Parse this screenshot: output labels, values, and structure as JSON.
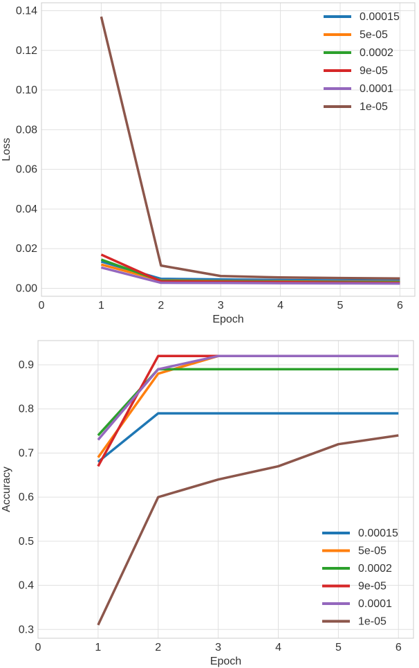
{
  "chart_data": [
    {
      "type": "line",
      "title": "",
      "xlabel": "Epoch",
      "ylabel": "Loss",
      "xlim": [
        0,
        6.25
      ],
      "ylim": [
        -0.004,
        0.144
      ],
      "xticks": [
        0,
        1,
        2,
        3,
        4,
        5,
        6
      ],
      "yticks": [
        0.0,
        0.02,
        0.04,
        0.06,
        0.08,
        0.1,
        0.12,
        0.14
      ],
      "ytick_format": 2,
      "grid": true,
      "legend_position": "top-right",
      "x": [
        1,
        2,
        3,
        4,
        5,
        6
      ],
      "series": [
        {
          "name": "0.00015",
          "color": "#1f77b4",
          "values": [
            0.0135,
            0.0048,
            0.0045,
            0.0042,
            0.004,
            0.0038
          ]
        },
        {
          "name": "5e-05",
          "color": "#ff7f0e",
          "values": [
            0.012,
            0.004,
            0.0037,
            0.0035,
            0.0033,
            0.0032
          ]
        },
        {
          "name": "0.0002",
          "color": "#2ca02c",
          "values": [
            0.0145,
            0.0038,
            0.0035,
            0.0033,
            0.0031,
            0.003
          ]
        },
        {
          "name": "9e-05",
          "color": "#d62728",
          "values": [
            0.017,
            0.0035,
            0.0033,
            0.0031,
            0.0029,
            0.0027
          ]
        },
        {
          "name": "0.0001",
          "color": "#9467bd",
          "values": [
            0.0105,
            0.0028,
            0.0027,
            0.0026,
            0.0025,
            0.0024
          ]
        },
        {
          "name": "1e-05",
          "color": "#8c564b",
          "values": [
            0.137,
            0.0115,
            0.0062,
            0.0055,
            0.0052,
            0.005
          ]
        }
      ]
    },
    {
      "type": "line",
      "title": "",
      "xlabel": "Epoch",
      "ylabel": "Accuracy",
      "xlim": [
        0,
        6.25
      ],
      "ylim": [
        0.28,
        0.955
      ],
      "xticks": [
        0,
        1,
        2,
        3,
        4,
        5,
        6
      ],
      "yticks": [
        0.3,
        0.4,
        0.5,
        0.6,
        0.7,
        0.8,
        0.9
      ],
      "ytick_format": 1,
      "grid": true,
      "legend_position": "bottom-right",
      "x": [
        1,
        2,
        3,
        4,
        5,
        6
      ],
      "series": [
        {
          "name": "0.00015",
          "color": "#1f77b4",
          "values": [
            0.68,
            0.79,
            0.79,
            0.79,
            0.79,
            0.79
          ]
        },
        {
          "name": "5e-05",
          "color": "#ff7f0e",
          "values": [
            0.69,
            0.88,
            0.92,
            0.92,
            0.92,
            0.92
          ]
        },
        {
          "name": "0.0002",
          "color": "#2ca02c",
          "values": [
            0.74,
            0.89,
            0.89,
            0.89,
            0.89,
            0.89
          ]
        },
        {
          "name": "9e-05",
          "color": "#d62728",
          "values": [
            0.67,
            0.92,
            0.92,
            0.92,
            0.92,
            0.92
          ]
        },
        {
          "name": "0.0001",
          "color": "#9467bd",
          "values": [
            0.73,
            0.89,
            0.92,
            0.92,
            0.92,
            0.92
          ]
        },
        {
          "name": "1e-05",
          "color": "#8c564b",
          "values": [
            0.31,
            0.6,
            0.64,
            0.67,
            0.72,
            0.74
          ]
        }
      ]
    }
  ]
}
